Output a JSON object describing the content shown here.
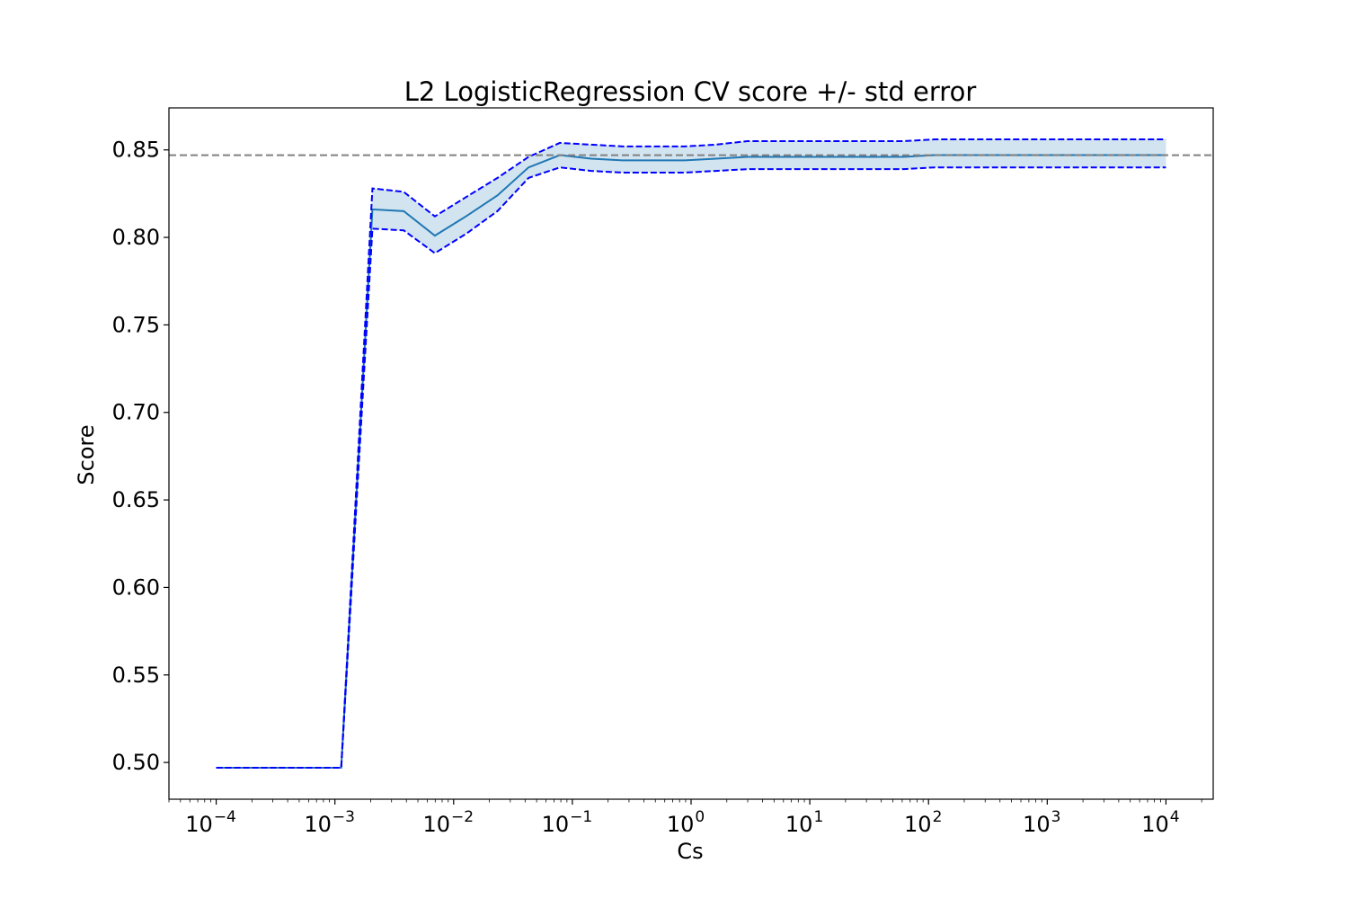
{
  "chart_data": {
    "type": "line",
    "title": "L2 LogisticRegression CV score +/- std error",
    "xlabel": "Cs",
    "ylabel": "Score",
    "xscale": "log",
    "xlim": [
      4e-05,
      25000.0
    ],
    "ylim": [
      0.479,
      0.874
    ],
    "grid": false,
    "x_ticks": [
      {
        "value": 0.0001,
        "base": "10",
        "exp": "−4"
      },
      {
        "value": 0.001,
        "base": "10",
        "exp": "−3"
      },
      {
        "value": 0.01,
        "base": "10",
        "exp": "−2"
      },
      {
        "value": 0.1,
        "base": "10",
        "exp": "−1"
      },
      {
        "value": 1,
        "base": "10",
        "exp": "0"
      },
      {
        "value": 10,
        "base": "10",
        "exp": "1"
      },
      {
        "value": 100,
        "base": "10",
        "exp": "2"
      },
      {
        "value": 1000,
        "base": "10",
        "exp": "3"
      },
      {
        "value": 10000,
        "base": "10",
        "exp": "4"
      }
    ],
    "y_ticks": [
      {
        "value": 0.5,
        "label": "0.50"
      },
      {
        "value": 0.55,
        "label": "0.55"
      },
      {
        "value": 0.6,
        "label": "0.60"
      },
      {
        "value": 0.65,
        "label": "0.65"
      },
      {
        "value": 0.7,
        "label": "0.70"
      },
      {
        "value": 0.75,
        "label": "0.75"
      },
      {
        "value": 0.8,
        "label": "0.80"
      },
      {
        "value": 0.85,
        "label": "0.85"
      }
    ],
    "x": [
      0.0001,
      0.000183,
      0.000336,
      0.000616,
      0.00113,
      0.00207,
      0.0038,
      0.00695,
      0.0127,
      0.0234,
      0.0428,
      0.0785,
      0.144,
      0.264,
      0.483,
      0.886,
      1.62,
      2.98,
      5.46,
      10.0,
      18.3,
      33.6,
      61.6,
      113,
      207,
      380,
      695,
      1270,
      2340,
      4280,
      10000
    ],
    "series": [
      {
        "role": "mean",
        "color": "#1f77b4",
        "values": [
          0.497,
          0.497,
          0.497,
          0.497,
          0.497,
          0.816,
          0.815,
          0.801,
          0.812,
          0.824,
          0.84,
          0.847,
          0.845,
          0.844,
          0.844,
          0.844,
          0.845,
          0.846,
          0.846,
          0.846,
          0.846,
          0.846,
          0.846,
          0.847,
          0.847,
          0.847,
          0.847,
          0.847,
          0.847,
          0.847,
          0.847
        ]
      },
      {
        "role": "upper",
        "color": "#0000ff",
        "style": "dashed",
        "values": [
          0.497,
          0.497,
          0.497,
          0.497,
          0.497,
          0.828,
          0.826,
          0.812,
          0.823,
          0.834,
          0.846,
          0.854,
          0.853,
          0.852,
          0.852,
          0.852,
          0.853,
          0.855,
          0.855,
          0.855,
          0.855,
          0.855,
          0.855,
          0.856,
          0.856,
          0.856,
          0.856,
          0.856,
          0.856,
          0.856,
          0.856
        ]
      },
      {
        "role": "lower",
        "color": "#0000ff",
        "style": "dashed",
        "values": [
          0.497,
          0.497,
          0.497,
          0.497,
          0.497,
          0.805,
          0.804,
          0.791,
          0.802,
          0.815,
          0.834,
          0.84,
          0.838,
          0.837,
          0.837,
          0.837,
          0.838,
          0.839,
          0.839,
          0.839,
          0.839,
          0.839,
          0.839,
          0.84,
          0.84,
          0.84,
          0.84,
          0.84,
          0.84,
          0.84,
          0.84
        ]
      }
    ],
    "fill_between": {
      "color": "#1f77b4",
      "opacity": 0.2
    },
    "reference_line": {
      "y": 0.847,
      "color": "#808080",
      "style": "dashed"
    }
  }
}
